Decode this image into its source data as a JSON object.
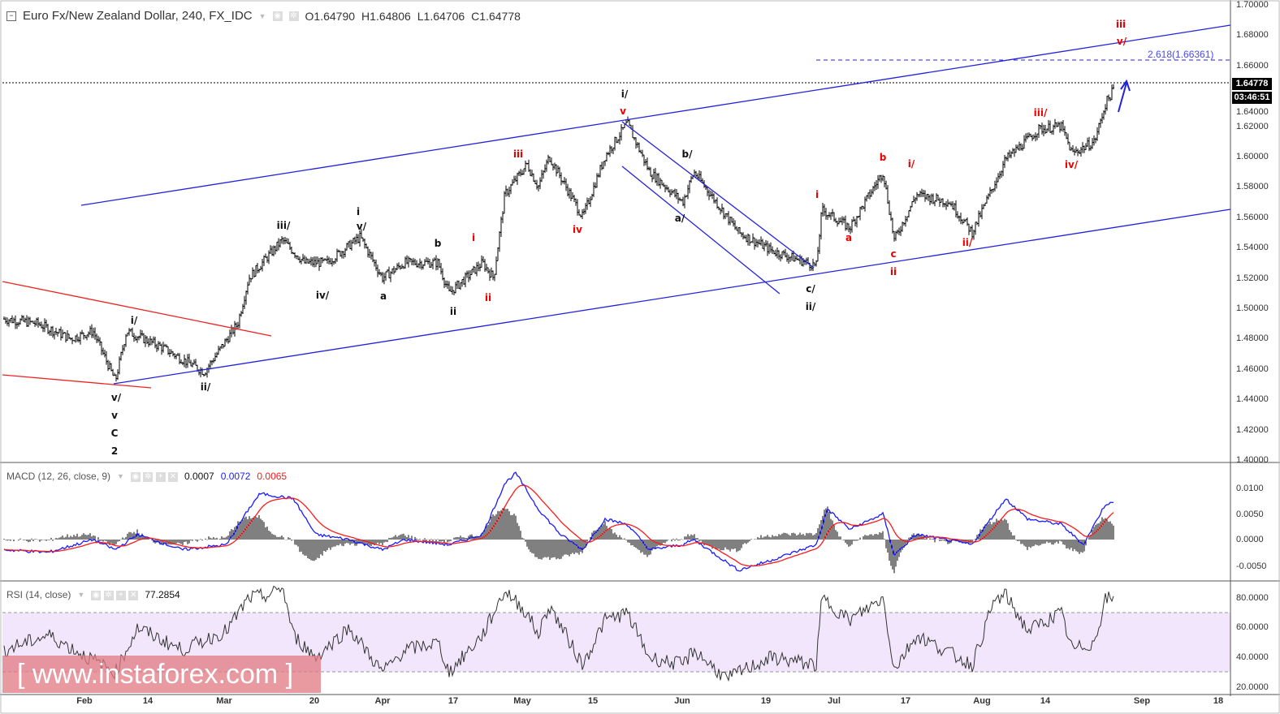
{
  "header": {
    "title": "Euro Fx/New Zealand Dollar, 240, FX_IDC",
    "open": "O1.64790",
    "high": "H1.64806",
    "low": "L1.64706",
    "close": "C1.64778"
  },
  "price_tag": "1.64778",
  "countdown": "03:46:51",
  "fib_label": "2.618(1.66361)",
  "price_axis": [
    "1.70000",
    "1.68000",
    "1.66000",
    "1.64000",
    "1.62000",
    "1.60000",
    "1.58000",
    "1.56000",
    "1.54000",
    "1.52000",
    "1.50000",
    "1.48000",
    "1.46000",
    "1.44000",
    "1.42000",
    "1.40000"
  ],
  "macd": {
    "title": "MACD (12, 26, close, 9)",
    "hist": "0.0007",
    "macd": "0.0072",
    "signal": "0.0065",
    "axis": [
      "0.0100",
      "0.0050",
      "0.0000",
      "-0.0050"
    ]
  },
  "rsi": {
    "title": "RSI (14, close)",
    "value": "77.2854",
    "axis": [
      "80.0000",
      "60.0000",
      "40.0000",
      "20.0000"
    ]
  },
  "time_axis": [
    "Feb",
    "14",
    "Mar",
    "20",
    "Apr",
    "17",
    "May",
    "15",
    "Jun",
    "19",
    "Jul",
    "17",
    "Aug",
    "14",
    "Sep",
    "18"
  ],
  "labels": [
    "i/",
    "v/",
    "v",
    "C",
    "2",
    "ii/",
    "iii/",
    "iv/",
    "i",
    "v/",
    "a",
    "b",
    "ii",
    "i/",
    "b/",
    "a/",
    "c/",
    "ii/",
    "v",
    "iii",
    "i",
    "ii",
    "iv",
    "i",
    "a",
    "b",
    "i/",
    "c",
    "ii",
    "ii/",
    "iii/",
    "iv/",
    "iii",
    "v/"
  ],
  "watermark": "[ www.instaforex.com ]",
  "colors": {
    "channel": "#2222dd",
    "trend": "#ee2222",
    "macd": "#1a1aff",
    "signal": "#ff1a1a",
    "rsi_band": "#f1e6fb"
  },
  "chart_data": {
    "type": "line",
    "title": "Euro Fx/New Zealand Dollar, 240, FX_IDC",
    "ylim": [
      1.4,
      1.7
    ],
    "price_path": [
      [
        0,
        1.493
      ],
      [
        3,
        1.49
      ],
      [
        6,
        1.48
      ],
      [
        8,
        1.485
      ],
      [
        10,
        1.452
      ],
      [
        11,
        1.485
      ],
      [
        14,
        1.475
      ],
      [
        18,
        1.458
      ],
      [
        21,
        1.49
      ],
      [
        22,
        1.52
      ],
      [
        25,
        1.545
      ],
      [
        27,
        1.53
      ],
      [
        29,
        1.53
      ],
      [
        32,
        1.547
      ],
      [
        34,
        1.52
      ],
      [
        36,
        1.53
      ],
      [
        39,
        1.53
      ],
      [
        40,
        1.51
      ],
      [
        43,
        1.53
      ],
      [
        44,
        1.52
      ],
      [
        45,
        1.575
      ],
      [
        47,
        1.595
      ],
      [
        48,
        1.58
      ],
      [
        49,
        1.6
      ],
      [
        52,
        1.56
      ],
      [
        54,
        1.6
      ],
      [
        56,
        1.622
      ],
      [
        58,
        1.59
      ],
      [
        61,
        1.57
      ],
      [
        62,
        1.59
      ],
      [
        66,
        1.55
      ],
      [
        69,
        1.538
      ],
      [
        73,
        1.528
      ],
      [
        73.5,
        1.565
      ],
      [
        76,
        1.553
      ],
      [
        79,
        1.59
      ],
      [
        80,
        1.545
      ],
      [
        82,
        1.575
      ],
      [
        85,
        1.57
      ],
      [
        87,
        1.55
      ],
      [
        90,
        1.598
      ],
      [
        93,
        1.618
      ],
      [
        95,
        1.62
      ],
      [
        96,
        1.602
      ],
      [
        98,
        1.61
      ],
      [
        99,
        1.635
      ],
      [
        100,
        1.648
      ]
    ],
    "macd_path": [
      [
        0,
        -0.002
      ],
      [
        4,
        -0.0025
      ],
      [
        8,
        0
      ],
      [
        10,
        -0.002
      ],
      [
        12,
        0.001
      ],
      [
        16,
        -0.002
      ],
      [
        20,
        -0.001
      ],
      [
        22,
        0.006
      ],
      [
        23,
        0.009
      ],
      [
        26,
        0.008
      ],
      [
        28,
        0.001
      ],
      [
        31,
        0
      ],
      [
        34,
        -0.002
      ],
      [
        36,
        0
      ],
      [
        40,
        -0.001
      ],
      [
        43,
        0.001
      ],
      [
        45,
        0.011
      ],
      [
        46,
        0.013
      ],
      [
        48,
        0.006
      ],
      [
        50,
        0.001
      ],
      [
        52,
        -0.002
      ],
      [
        54,
        0.004
      ],
      [
        56,
        0.003
      ],
      [
        58,
        -0.002
      ],
      [
        61,
        -0.001
      ],
      [
        62,
        0.0
      ],
      [
        66,
        -0.006
      ],
      [
        69,
        -0.004
      ],
      [
        73,
        -0.001
      ],
      [
        74,
        0.006
      ],
      [
        76,
        0.002
      ],
      [
        79,
        0.005
      ],
      [
        80,
        -0.003
      ],
      [
        82,
        0.001
      ],
      [
        87,
        -0.001
      ],
      [
        90,
        0.008
      ],
      [
        92,
        0.004
      ],
      [
        95,
        0.003
      ],
      [
        97,
        -0.001
      ],
      [
        99,
        0.007
      ],
      [
        100,
        0.0072
      ]
    ],
    "rsi_path": [
      [
        0,
        45
      ],
      [
        4,
        55
      ],
      [
        8,
        38
      ],
      [
        10,
        30
      ],
      [
        12,
        60
      ],
      [
        16,
        45
      ],
      [
        20,
        58
      ],
      [
        22,
        80
      ],
      [
        24,
        82
      ],
      [
        25,
        88
      ],
      [
        26,
        55
      ],
      [
        28,
        40
      ],
      [
        31,
        60
      ],
      [
        34,
        30
      ],
      [
        36,
        45
      ],
      [
        39,
        50
      ],
      [
        40,
        30
      ],
      [
        43,
        55
      ],
      [
        45,
        85
      ],
      [
        47,
        70
      ],
      [
        48,
        55
      ],
      [
        49,
        75
      ],
      [
        52,
        35
      ],
      [
        54,
        65
      ],
      [
        56,
        70
      ],
      [
        58,
        40
      ],
      [
        61,
        35
      ],
      [
        62,
        45
      ],
      [
        65,
        25
      ],
      [
        66,
        30
      ],
      [
        69,
        40
      ],
      [
        73,
        35
      ],
      [
        73.5,
        80
      ],
      [
        76,
        65
      ],
      [
        79,
        80
      ],
      [
        80,
        32
      ],
      [
        82,
        55
      ],
      [
        87,
        35
      ],
      [
        89,
        78
      ],
      [
        90,
        82
      ],
      [
        92,
        58
      ],
      [
        95,
        70
      ],
      [
        96,
        45
      ],
      [
        98,
        50
      ],
      [
        99,
        80
      ],
      [
        100,
        78
      ]
    ]
  }
}
